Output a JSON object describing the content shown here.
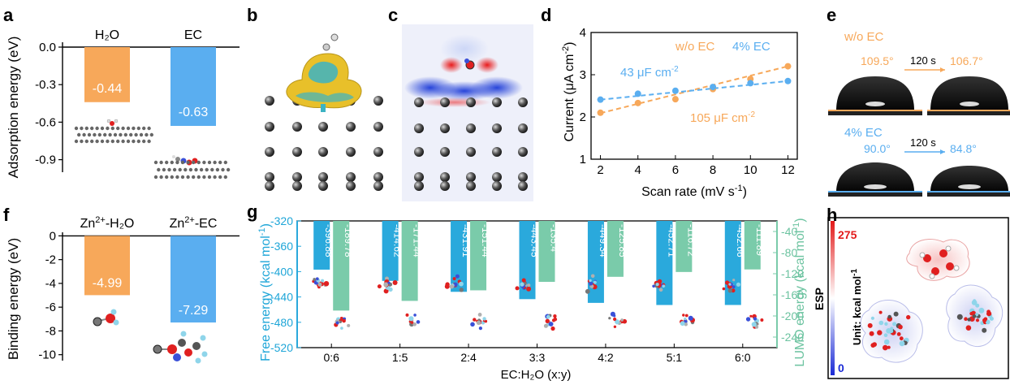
{
  "colors": {
    "orange": "#F7A85A",
    "blue": "#5AAEF0",
    "teal_bar": "#2AA9DC",
    "green_bar": "#7ACBAA",
    "teal_text": "#1FA6D8",
    "green_text": "#6CC3A0"
  },
  "panel_letters": {
    "a": "a",
    "b": "b",
    "c": "c",
    "d": "d",
    "e": "e",
    "f": "f",
    "g": "g",
    "h": "h"
  },
  "chart_data": [
    {
      "id": "a",
      "type": "bar",
      "ylabel": "Adsorption  energy (eV)",
      "categories": [
        "H₂O",
        "EC"
      ],
      "values": [
        -0.44,
        -0.63
      ],
      "value_labels": [
        "-0.44",
        "-0.63"
      ],
      "ylim": [
        -1.0,
        0.0
      ],
      "yticks": [
        {
          "v": 0.0,
          "t": "0.0"
        },
        {
          "v": -0.3,
          "t": "-0.3"
        },
        {
          "v": -0.6,
          "t": "-0.6"
        },
        {
          "v": -0.9,
          "t": "-0.9"
        }
      ]
    },
    {
      "id": "d",
      "type": "scatter",
      "xlabel": "Scan rate (mV s",
      "xlabel_sup": "-1",
      "xlabel_end": ")",
      "ylabel": "Current (μA cm",
      "ylabel_sup": "-2",
      "ylabel_end": ")",
      "xlim": [
        1.5,
        12.5
      ],
      "ylim": [
        1,
        4
      ],
      "xticks": [
        2,
        4,
        6,
        8,
        10,
        12
      ],
      "yticks": [
        1,
        2,
        3,
        4
      ],
      "legend": [
        {
          "text": "w/o EC",
          "color": "#F7A85A"
        },
        {
          "text": "4% EC",
          "color": "#5AAEF0"
        }
      ],
      "annotations": [
        {
          "text": "43 μF cm",
          "sup": "-2",
          "color": "#5AAEF0"
        },
        {
          "text": "105 μF cm",
          "sup": "-2",
          "color": "#F7A85A"
        }
      ],
      "series": [
        {
          "name": "w/o EC",
          "color": "#F7A85A",
          "x": [
            2,
            4,
            6,
            8,
            10,
            12
          ],
          "y": [
            2.1,
            2.33,
            2.42,
            2.66,
            2.9,
            3.2
          ],
          "fit": [
            [
              2,
              2.09
            ],
            [
              12,
              3.2
            ]
          ]
        },
        {
          "name": "4% EC",
          "color": "#5AAEF0",
          "x": [
            2,
            4,
            6,
            8,
            10,
            12
          ],
          "y": [
            2.41,
            2.55,
            2.62,
            2.71,
            2.8,
            2.85
          ],
          "fit": [
            [
              2,
              2.41
            ],
            [
              12,
              2.85
            ]
          ]
        }
      ]
    },
    {
      "id": "f",
      "type": "bar",
      "ylabel": "Binding energy (eV)",
      "categories": [
        "Zn",
        "Zn"
      ],
      "category_sups": [
        "2+",
        "2+"
      ],
      "category_suffix": [
        "-H₂O",
        "-EC"
      ],
      "values": [
        -4.99,
        -7.29
      ],
      "value_labels": [
        "-4.99",
        "-7.29"
      ],
      "ylim": [
        -10.5,
        0.3
      ],
      "yticks": [
        {
          "v": 0,
          "t": "0"
        },
        {
          "v": -2,
          "t": "-2"
        },
        {
          "v": -4,
          "t": "-4"
        },
        {
          "v": -6,
          "t": "-6"
        },
        {
          "v": -8,
          "t": "-8"
        },
        {
          "v": -10,
          "t": "-10"
        }
      ]
    },
    {
      "id": "g",
      "type": "bar",
      "xlabel": "EC:H₂O (x:y)",
      "ylabel_left": "Free energy (kcal mol",
      "ylabel_left_sup": "-1",
      "ylabel_left_end": ")",
      "ylabel_right": "LUMO energy (kcal mol",
      "ylabel_right_sup": "-1",
      "ylabel_right_end": ")",
      "categories": [
        "0:6",
        "1:5",
        "2:4",
        "3:3",
        "4:2",
        "5:1",
        "6:0"
      ],
      "ylim_left": [
        -520,
        -320
      ],
      "ylim_right": [
        -260,
        -20
      ],
      "yticks_left": [
        -320,
        -360,
        -400,
        -440,
        -480,
        -520
      ],
      "yticks_right": [
        -40,
        -80,
        -120,
        -160,
        -200,
        -240
      ],
      "series": [
        {
          "name": "Free energy",
          "axis": "left",
          "values": [
            -396.88,
            -414.62,
            -431.91,
            -443.45,
            -449.34,
            -452.71,
            -452.66
          ],
          "labels": [
            "-396.88",
            "-414.62",
            "-431.91",
            "-443.45",
            "-449.34",
            "-452.71",
            "-452.66"
          ]
        },
        {
          "name": "LUMO energy",
          "axis": "right",
          "values": [
            -189.78,
            -171.44,
            -151.44,
            -135.4,
            -125.85,
            -116.72,
            -111.89
          ],
          "labels": [
            "-189.78",
            "-171.44",
            "-151.44",
            "-135.4",
            "-125.85",
            "-116.72",
            "-111.89"
          ]
        }
      ]
    }
  ],
  "panel_e": {
    "row1_label": "w/o EC",
    "row1_angle1": "109.5°",
    "row1_time": "120 s",
    "row1_angle2": "106.7°",
    "row2_label": "4% EC",
    "row2_angle1": "90.0°",
    "row2_time": "120 s",
    "row2_angle2": "84.8°"
  },
  "panel_h": {
    "ylabel": "ESP",
    "unit": "Unit: kcal mol",
    "unit_sup": "-1",
    "max": "275",
    "min": "0"
  }
}
